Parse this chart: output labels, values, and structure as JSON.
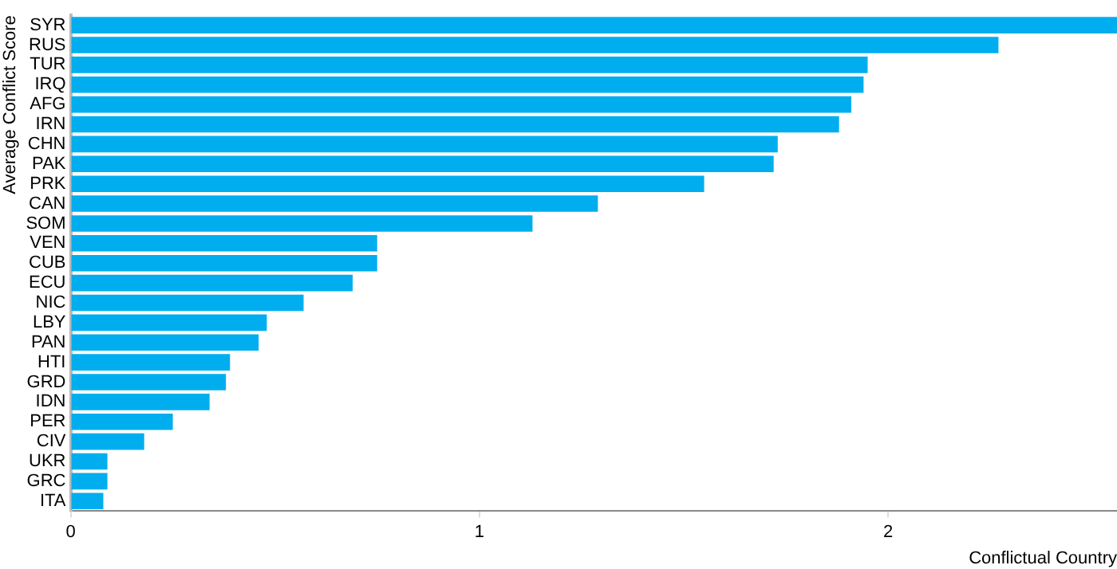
{
  "chart_data": {
    "type": "bar",
    "orientation": "horizontal",
    "xlabel": "Conflictual Country",
    "ylabel": "Average Conflict Score",
    "categories": [
      "SYR",
      "RUS",
      "TUR",
      "IRQ",
      "AFG",
      "IRN",
      "CHN",
      "PAK",
      "PRK",
      "CAN",
      "SOM",
      "VEN",
      "CUB",
      "ECU",
      "NIC",
      "LBY",
      "PAN",
      "HTI",
      "GRD",
      "IDN",
      "PER",
      "CIV",
      "UKR",
      "GRC",
      "ITA"
    ],
    "values": [
      2.56,
      2.27,
      1.95,
      1.94,
      1.91,
      1.88,
      1.73,
      1.72,
      1.55,
      1.29,
      1.13,
      0.75,
      0.75,
      0.69,
      0.57,
      0.48,
      0.46,
      0.39,
      0.38,
      0.34,
      0.25,
      0.18,
      0.09,
      0.09,
      0.08
    ],
    "color": "#00aeef",
    "xlim": [
      0,
      2.56
    ],
    "xticks": [
      0,
      1,
      2
    ],
    "grid": false,
    "legend": false
  }
}
